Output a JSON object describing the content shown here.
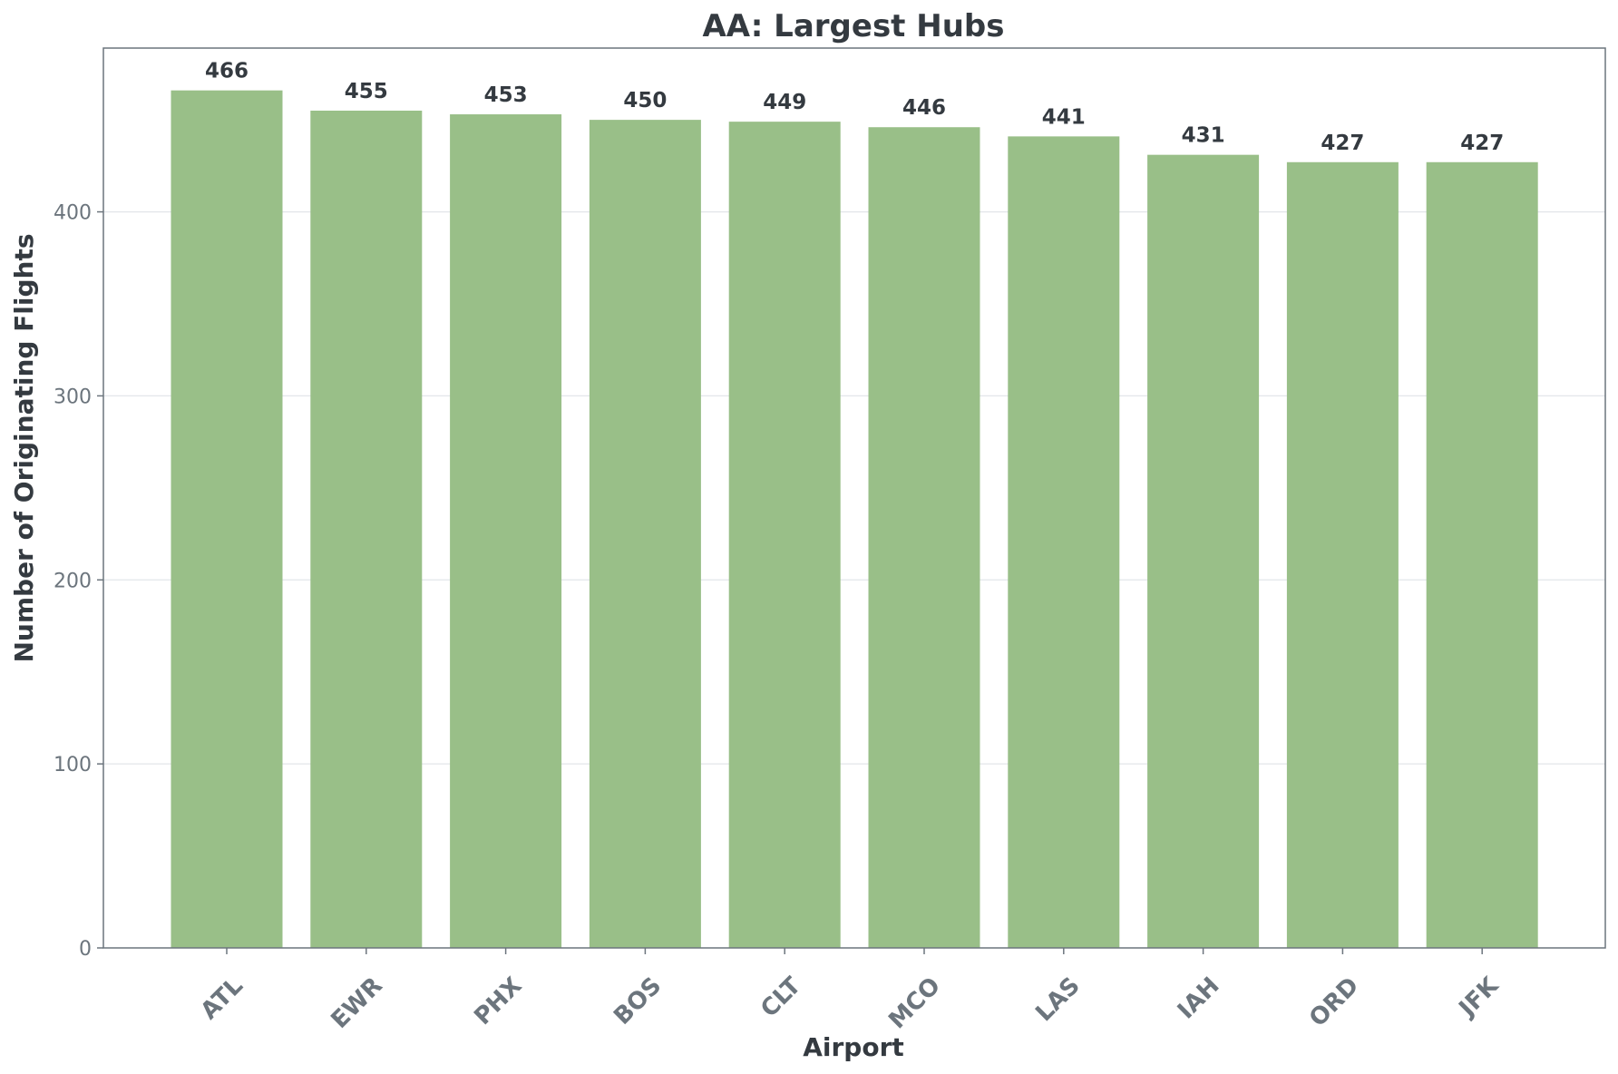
{
  "chart_data": {
    "type": "bar",
    "title": "AA: Largest Hubs",
    "xlabel": "Airport",
    "ylabel": "Number of Originating Flights",
    "categories": [
      "ATL",
      "EWR",
      "PHX",
      "BOS",
      "CLT",
      "MCO",
      "LAS",
      "IAH",
      "ORD",
      "JFK"
    ],
    "values": [
      466,
      455,
      453,
      450,
      449,
      446,
      441,
      431,
      427,
      427
    ],
    "ylim": [
      0,
      489
    ],
    "yticks": [
      0,
      100,
      200,
      300,
      400
    ],
    "grid": "y",
    "bar_color": "#99bf88",
    "xtick_rotation": -45,
    "data_labels": true
  }
}
